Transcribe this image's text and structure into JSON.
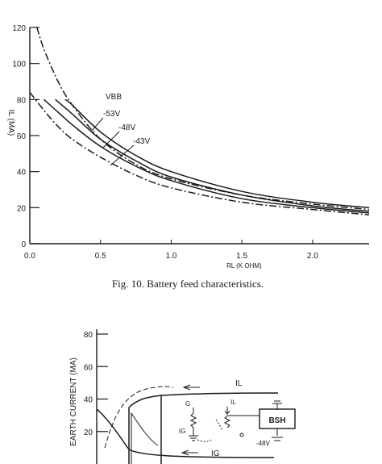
{
  "chart_data": [
    {
      "type": "line",
      "title": "",
      "caption": "Fig. 10.  Battery feed characteristics.",
      "xlabel": "RL    (K OHM)",
      "ylabel": "IL   (MA)",
      "xlim": [
        0.0,
        2.4
      ],
      "ylim": [
        0,
        120
      ],
      "x_ticks": [
        "0.0",
        "0.5",
        "1.0",
        "1.5",
        "2.0"
      ],
      "y_ticks": [
        "0",
        "20",
        "40",
        "60",
        "80",
        "100",
        "120"
      ],
      "legend_title": "VBB",
      "series": [
        {
          "name": "",
          "style": "dash-dot",
          "x": [
            0.05,
            0.1,
            0.2,
            0.3,
            0.5,
            0.75,
            1.0,
            1.5,
            2.0,
            2.4
          ],
          "y": [
            120,
            108,
            90,
            77,
            58,
            44,
            36,
            27,
            22,
            19
          ]
        },
        {
          "name": "-53V",
          "style": "solid",
          "x": [
            0.25,
            0.3,
            0.5,
            0.75,
            1.0,
            1.5,
            2.0,
            2.4
          ],
          "y": [
            80,
            77,
            62,
            49,
            40,
            29,
            23,
            20
          ]
        },
        {
          "name": "-48V",
          "style": "solid",
          "x": [
            0.18,
            0.3,
            0.5,
            0.75,
            1.0,
            1.5,
            2.0,
            2.4
          ],
          "y": [
            80,
            72,
            58,
            46,
            37,
            27,
            21,
            18
          ]
        },
        {
          "name": "-43V",
          "style": "solid",
          "x": [
            0.1,
            0.2,
            0.3,
            0.5,
            0.75,
            1.0,
            1.5,
            2.0,
            2.4
          ],
          "y": [
            80,
            73,
            66,
            54,
            43,
            35,
            25,
            20,
            17
          ]
        },
        {
          "name": "",
          "style": "dash-dot",
          "x": [
            0.0,
            0.1,
            0.2,
            0.3,
            0.5,
            0.75,
            1.0,
            1.5,
            2.0,
            2.4
          ],
          "y": [
            84,
            74,
            65,
            58,
            48,
            38,
            31,
            23,
            19,
            16
          ]
        }
      ]
    },
    {
      "type": "line",
      "title": "",
      "xlabel": "",
      "ylabel": "EARTH CURRENT (MA)",
      "ylim": [
        0,
        80
      ],
      "y_ticks": [
        "20",
        "40",
        "60",
        "80"
      ],
      "annotations": {
        "il": "IL",
        "ig": "IG",
        "g": "G",
        "ig_circuit": "IG",
        "il_circuit": "IL",
        "box": "BSH",
        "voltage": "-48V"
      }
    }
  ]
}
